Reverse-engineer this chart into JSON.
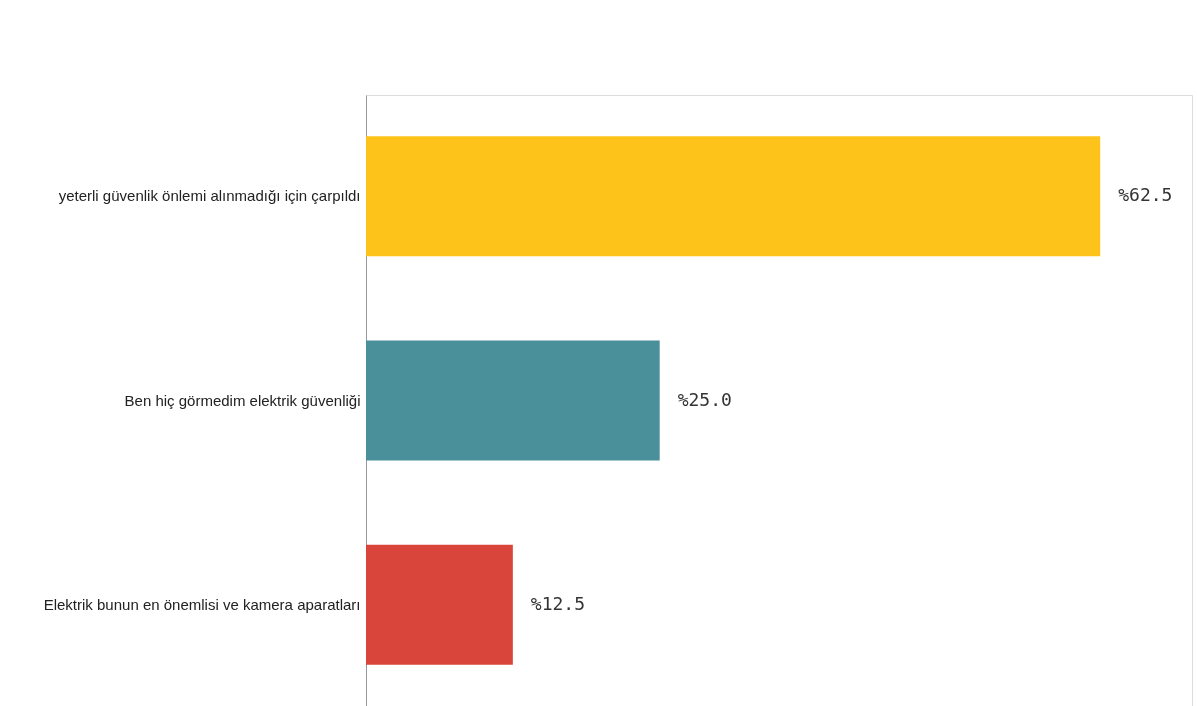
{
  "chart_data": {
    "type": "bar",
    "orientation": "horizontal",
    "categories": [
      "yeterli güvenlik önlemi alınmadığı için çarpıldı",
      "Ben hiç görmedim elektrik güvenliği",
      "Elektrik bunun en önemlisi ve kamera aparatları"
    ],
    "values": [
      62.5,
      25.0,
      12.5
    ],
    "colors": [
      "#fdc31a",
      "#4a909b",
      "#d9443b"
    ],
    "value_labels": [
      "%62.5",
      "%25.0",
      "%12.5"
    ]
  }
}
